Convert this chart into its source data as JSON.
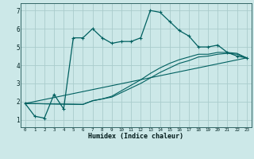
{
  "xlabel": "Humidex (Indice chaleur)",
  "background_color": "#cce8e8",
  "grid_color": "#aacccc",
  "line_color": "#006060",
  "xlim": [
    -0.5,
    23.5
  ],
  "ylim": [
    0.6,
    7.4
  ],
  "yticks": [
    1,
    2,
    3,
    4,
    5,
    6,
    7
  ],
  "xticks": [
    0,
    1,
    2,
    3,
    4,
    5,
    6,
    7,
    8,
    9,
    10,
    11,
    12,
    13,
    14,
    15,
    16,
    17,
    18,
    19,
    20,
    21,
    22,
    23
  ],
  "series1_x": [
    0,
    1,
    2,
    3,
    4,
    5,
    6,
    7,
    8,
    9,
    10,
    11,
    12,
    13,
    14,
    15,
    16,
    17,
    18,
    19,
    20,
    21,
    22,
    23
  ],
  "series1_y": [
    1.9,
    1.2,
    1.1,
    2.4,
    1.6,
    5.5,
    5.5,
    6.0,
    5.5,
    5.2,
    5.3,
    5.3,
    5.5,
    7.0,
    6.9,
    6.4,
    5.9,
    5.6,
    5.0,
    5.0,
    5.1,
    4.7,
    4.5,
    4.4
  ],
  "series2_x": [
    0,
    6,
    7,
    8,
    9,
    10,
    11,
    12,
    13,
    14,
    15,
    16,
    17,
    18,
    19,
    20,
    21,
    22,
    23
  ],
  "series2_y": [
    1.9,
    1.85,
    2.05,
    2.15,
    2.25,
    2.5,
    2.75,
    3.0,
    3.3,
    3.6,
    3.85,
    4.1,
    4.25,
    4.45,
    4.5,
    4.6,
    4.65,
    4.6,
    4.4
  ],
  "series3_x": [
    0,
    6,
    7,
    8,
    9,
    10,
    11,
    12,
    13,
    14,
    15,
    16,
    17,
    18,
    19,
    20,
    21,
    22,
    23
  ],
  "series3_y": [
    1.9,
    1.85,
    2.05,
    2.15,
    2.3,
    2.6,
    2.9,
    3.2,
    3.55,
    3.85,
    4.1,
    4.3,
    4.45,
    4.6,
    4.6,
    4.7,
    4.7,
    4.65,
    4.4
  ],
  "series4_x": [
    0,
    23
  ],
  "series4_y": [
    1.9,
    4.4
  ]
}
